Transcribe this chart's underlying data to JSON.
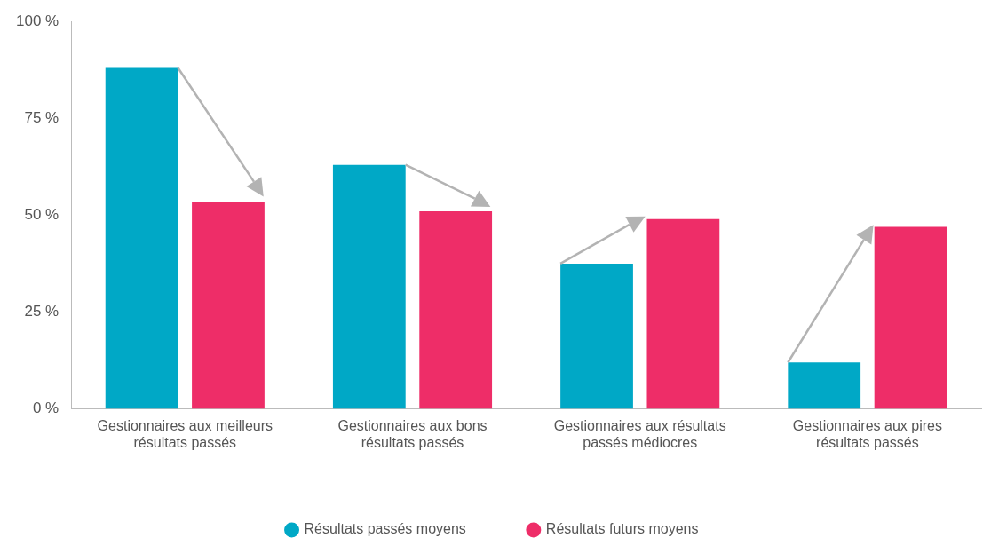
{
  "chart_data": {
    "type": "bar",
    "categories": [
      "Gestionnaires aux meilleurs résultats passés",
      "Gestionnaires aux bons résultats passés",
      "Gestionnaires aux résultats passés médiocres",
      "Gestionnaires aux pires résultats passés"
    ],
    "series": [
      {
        "name": "Résultats passés moyens",
        "color": "#00a8c6",
        "values": [
          88,
          63,
          37.5,
          12
        ]
      },
      {
        "name": "Résultats futurs moyens",
        "color": "#ee2d68",
        "values": [
          53.5,
          51,
          49,
          47
        ]
      }
    ],
    "ylim": [
      0,
      100
    ],
    "yticks": [
      {
        "value": 0,
        "label": "0 %"
      },
      {
        "value": 25,
        "label": "25 %"
      },
      {
        "value": 50,
        "label": "50 %"
      },
      {
        "value": 75,
        "label": "75 %"
      },
      {
        "value": 100,
        "label": "100 %"
      }
    ],
    "grid": false,
    "legend": "bottom"
  }
}
